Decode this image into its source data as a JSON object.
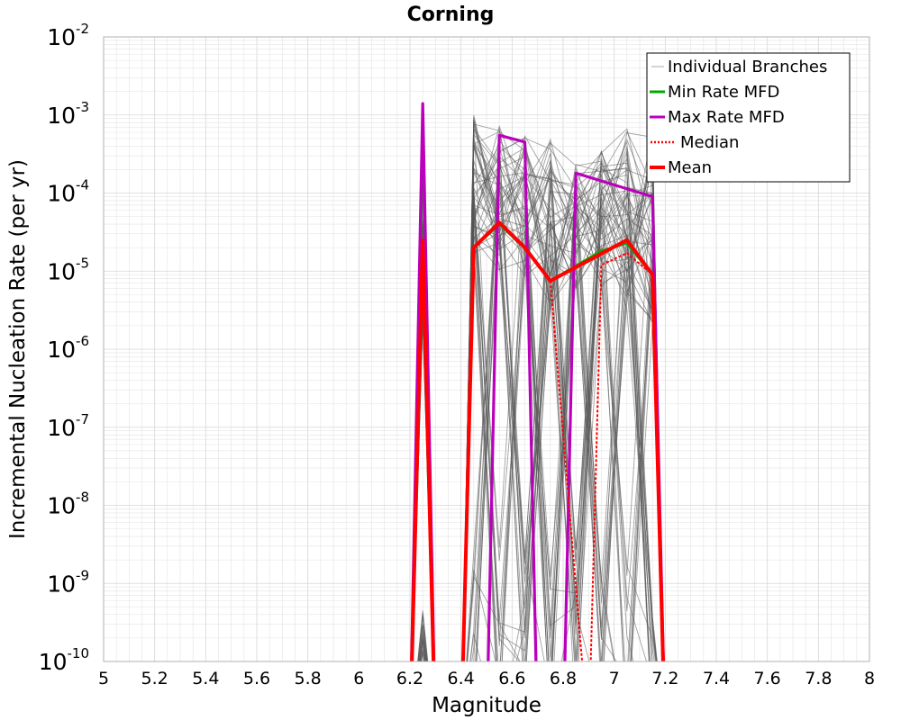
{
  "chart_data": {
    "type": "line",
    "title": "Corning",
    "xlabel": "Magnitude",
    "ylabel": "Incremental Nucleation Rate (per yr)",
    "xlim": [
      5,
      8
    ],
    "ylim": [
      1e-10,
      0.01
    ],
    "yscale": "log",
    "grid": true,
    "legend_position": "top-right",
    "x_ticks": [
      "5",
      "5.2",
      "5.4",
      "5.6",
      "5.8",
      "6",
      "6.2",
      "6.4",
      "6.6",
      "6.8",
      "7",
      "7.2",
      "7.4",
      "7.6",
      "7.8",
      "8"
    ],
    "y_tick_base": "10",
    "y_tick_exponents": [
      "-10",
      "-9",
      "-8",
      "-7",
      "-6",
      "-5",
      "-4",
      "-3",
      "-2"
    ],
    "legend": [
      "Individual Branches",
      "Min Rate MFD",
      "Max Rate MFD",
      "Median",
      "Mean"
    ],
    "series": [
      {
        "name": "Individual Branches",
        "color": "#555555",
        "style": "thin",
        "bundles": [
          {
            "x": 6.25,
            "y_min": 2e-06,
            "y_max": 0.0014
          },
          {
            "x": 6.45,
            "y_min": 1.5e-05,
            "y_max": 0.001
          },
          {
            "x": 6.55,
            "y_min": 1e-05,
            "y_max": 0.0009
          },
          {
            "x": 6.65,
            "y_min": 8e-06,
            "y_max": 0.0006
          },
          {
            "x": 6.75,
            "y_min": 3e-06,
            "y_max": 0.0006
          },
          {
            "x": 6.85,
            "y_min": 6e-06,
            "y_max": 0.00025
          },
          {
            "x": 6.95,
            "y_min": 5e-06,
            "y_max": 0.0004
          },
          {
            "x": 7.05,
            "y_min": 3e-06,
            "y_max": 0.0007
          },
          {
            "x": 7.15,
            "y_min": 2e-06,
            "y_max": 0.0006
          }
        ]
      },
      {
        "name": "Min Rate MFD",
        "color": "#00aa00",
        "points": [
          [
            6.2,
            1e-11
          ],
          [
            6.25,
            2.2e-05
          ],
          [
            6.3,
            1e-11
          ],
          [
            6.4,
            1e-11
          ],
          [
            6.45,
            2e-05
          ],
          [
            6.55,
            4e-05
          ],
          [
            6.65,
            2e-05
          ],
          [
            6.75,
            7.5e-06
          ],
          [
            6.95,
            1.8e-05
          ],
          [
            7.05,
            2.3e-05
          ],
          [
            7.15,
            9e-06
          ],
          [
            7.2,
            1e-11
          ]
        ]
      },
      {
        "name": "Max Rate MFD",
        "color": "#bb00bb",
        "points": [
          [
            6.2,
            1e-11
          ],
          [
            6.25,
            0.0014
          ],
          [
            6.3,
            1e-11
          ],
          [
            6.5,
            1e-11
          ],
          [
            6.55,
            0.00055
          ],
          [
            6.65,
            0.00045
          ],
          [
            6.7,
            1e-11
          ],
          [
            6.8,
            1e-11
          ],
          [
            6.85,
            0.00018
          ],
          [
            7.15,
            9e-05
          ],
          [
            7.2,
            1e-11
          ]
        ]
      },
      {
        "name": "Median",
        "color": "#ff0000",
        "dashed": true,
        "points": [
          [
            6.2,
            1e-11
          ],
          [
            6.25,
            2.2e-05
          ],
          [
            6.3,
            1e-11
          ],
          [
            6.4,
            1e-11
          ],
          [
            6.45,
            2e-05
          ],
          [
            6.55,
            4e-05
          ],
          [
            6.65,
            2e-05
          ],
          [
            6.75,
            7.5e-06
          ],
          [
            6.9,
            1e-11
          ],
          [
            6.95,
            1.2e-05
          ],
          [
            7.05,
            1.7e-05
          ],
          [
            7.15,
            9e-06
          ],
          [
            7.2,
            1e-11
          ]
        ]
      },
      {
        "name": "Mean",
        "color": "#ff0000",
        "points": [
          [
            6.2,
            1e-11
          ],
          [
            6.25,
            2.5e-05
          ],
          [
            6.3,
            1e-11
          ],
          [
            6.4,
            1e-11
          ],
          [
            6.45,
            2e-05
          ],
          [
            6.55,
            4.2e-05
          ],
          [
            6.65,
            2e-05
          ],
          [
            6.75,
            7.5e-06
          ],
          [
            7.05,
            2.5e-05
          ],
          [
            7.15,
            9e-06
          ],
          [
            7.2,
            1e-11
          ]
        ]
      }
    ]
  }
}
